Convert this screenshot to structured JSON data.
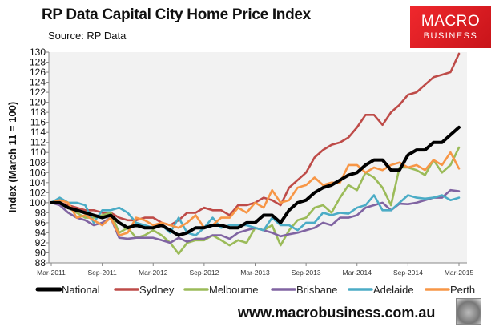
{
  "chart_data": {
    "type": "line",
    "title": "RP Data Capital City Home Price Index",
    "subtitle": "Source: RP Data",
    "ylabel": "Index (March 11 = 100)",
    "xlabel": "",
    "ylim": [
      88,
      130
    ],
    "yticks": [
      88,
      90,
      92,
      94,
      96,
      98,
      100,
      102,
      104,
      106,
      108,
      110,
      112,
      114,
      116,
      118,
      120,
      122,
      124,
      126,
      128,
      130
    ],
    "x_frequency": "monthly",
    "x": [
      "Mar-2011",
      "Apr-2011",
      "May-2011",
      "Jun-2011",
      "Jul-2011",
      "Aug-2011",
      "Sep-2011",
      "Oct-2011",
      "Nov-2011",
      "Dec-2011",
      "Jan-2012",
      "Feb-2012",
      "Mar-2012",
      "Apr-2012",
      "May-2012",
      "Jun-2012",
      "Jul-2012",
      "Aug-2012",
      "Sep-2012",
      "Oct-2012",
      "Nov-2012",
      "Dec-2012",
      "Jan-2013",
      "Feb-2013",
      "Mar-2013",
      "Apr-2013",
      "May-2013",
      "Jun-2013",
      "Jul-2013",
      "Aug-2013",
      "Sep-2013",
      "Oct-2013",
      "Nov-2013",
      "Dec-2013",
      "Jan-2014",
      "Feb-2014",
      "Mar-2014",
      "Apr-2014",
      "May-2014",
      "Jun-2014",
      "Jul-2014",
      "Aug-2014",
      "Sep-2014",
      "Oct-2014",
      "Nov-2014",
      "Dec-2014",
      "Jan-2015",
      "Feb-2015",
      "Mar-2015"
    ],
    "xtick_labels": [
      "Mar-2011",
      "Sep-2011",
      "Mar-2012",
      "Sep-2012",
      "Mar-2013",
      "Sep-2013",
      "Mar-2014",
      "Sep-2014",
      "Mar-2015"
    ],
    "grid": false,
    "legend_placement": "bottom",
    "series": [
      {
        "name": "National",
        "color": "#000000",
        "values": [
          100,
          100,
          99,
          98.5,
          98,
          97.5,
          97,
          97.5,
          96,
          95,
          95.5,
          95,
          95,
          95.5,
          94.5,
          93.5,
          94,
          95,
          95,
          95.5,
          95.5,
          95,
          95,
          96,
          96,
          97.5,
          97.5,
          96,
          98.5,
          100,
          100.5,
          102,
          103,
          103.5,
          104.5,
          105.5,
          106,
          107.5,
          108.5,
          108.5,
          106.5,
          106.5,
          109.5,
          110.5,
          110.5,
          112,
          112,
          113.5,
          115
        ]
      },
      {
        "name": "Sydney",
        "color": "#be4b48",
        "values": [
          100,
          100,
          99.5,
          99,
          98.5,
          98.5,
          98,
          98,
          97,
          96.5,
          96.5,
          97,
          97,
          96,
          95.5,
          96.5,
          98,
          98,
          99,
          98.5,
          98.5,
          97.5,
          99.5,
          99.5,
          100,
          101,
          100.5,
          99.5,
          103,
          104.5,
          106,
          109,
          110.5,
          111.5,
          112,
          113,
          115,
          117.5,
          117.5,
          115.5,
          118,
          119.5,
          121.5,
          122,
          123.5,
          125,
          125.5,
          126,
          129.7
        ]
      },
      {
        "name": "Melbourne",
        "color": "#9bbb59",
        "values": [
          100,
          100,
          99,
          98,
          97,
          97,
          97.5,
          98,
          94,
          95,
          93,
          93.5,
          94.5,
          93.5,
          92,
          89.8,
          92,
          92.5,
          92.5,
          93.5,
          92.5,
          91.5,
          92.5,
          92,
          95,
          94.5,
          95.5,
          91.5,
          94.5,
          96.5,
          97,
          99,
          99.5,
          98,
          101,
          103.5,
          102.5,
          106,
          105,
          103,
          99.5,
          107,
          107,
          106.5,
          105.5,
          108.5,
          106,
          107.5,
          111
        ]
      },
      {
        "name": "Brisbane",
        "color": "#8064a2",
        "values": [
          100,
          99.5,
          98,
          97,
          96.5,
          95.5,
          96,
          97,
          93,
          92.8,
          93,
          93,
          93,
          92.5,
          92,
          93,
          92.2,
          92.8,
          92.8,
          93.5,
          93.5,
          92.8,
          94,
          94.5,
          95,
          94.5,
          94,
          93.3,
          93.7,
          94,
          94.5,
          95,
          96,
          95.5,
          97,
          97,
          97.5,
          99,
          99.5,
          100,
          98.5,
          99.8,
          99.7,
          100,
          100.5,
          101,
          101,
          102.5,
          102.3
        ]
      },
      {
        "name": "Adelaide",
        "color": "#4bacc6",
        "values": [
          100,
          101,
          100,
          100,
          99.5,
          96,
          98.5,
          98.5,
          99,
          98,
          96,
          95.5,
          95,
          95.5,
          94,
          97,
          94,
          93.5,
          95,
          97,
          95,
          95.5,
          95.5,
          95.5,
          95,
          94.5,
          97,
          95.5,
          95.5,
          94.5,
          96,
          96,
          98,
          97.5,
          98,
          97.8,
          99,
          99.5,
          101.5,
          98.5,
          98.5,
          100,
          101.5,
          101,
          100.8,
          101,
          101.5,
          100.5,
          101
        ]
      },
      {
        "name": "Perth",
        "color": "#f79646",
        "values": [
          100,
          100.5,
          100,
          97,
          97.5,
          96.5,
          95.5,
          97,
          93.5,
          94,
          97,
          96.5,
          95.5,
          96,
          95.5,
          95,
          96,
          97.5,
          95,
          95.5,
          97,
          97,
          99,
          98,
          100,
          99,
          102.5,
          100,
          100.5,
          103,
          103.5,
          105,
          103.5,
          104,
          104,
          107.5,
          107.5,
          106,
          107,
          106.5,
          107.5,
          108,
          107,
          107.5,
          106.5,
          108.5,
          107.5,
          110,
          106.8
        ]
      }
    ]
  },
  "logo": {
    "line1": "MACRO",
    "line2": "BUSINESS",
    "color": "#e3242b"
  },
  "footer": {
    "url": "www.macrobusiness.com.au",
    "mascot_icon": "wolf-icon"
  }
}
